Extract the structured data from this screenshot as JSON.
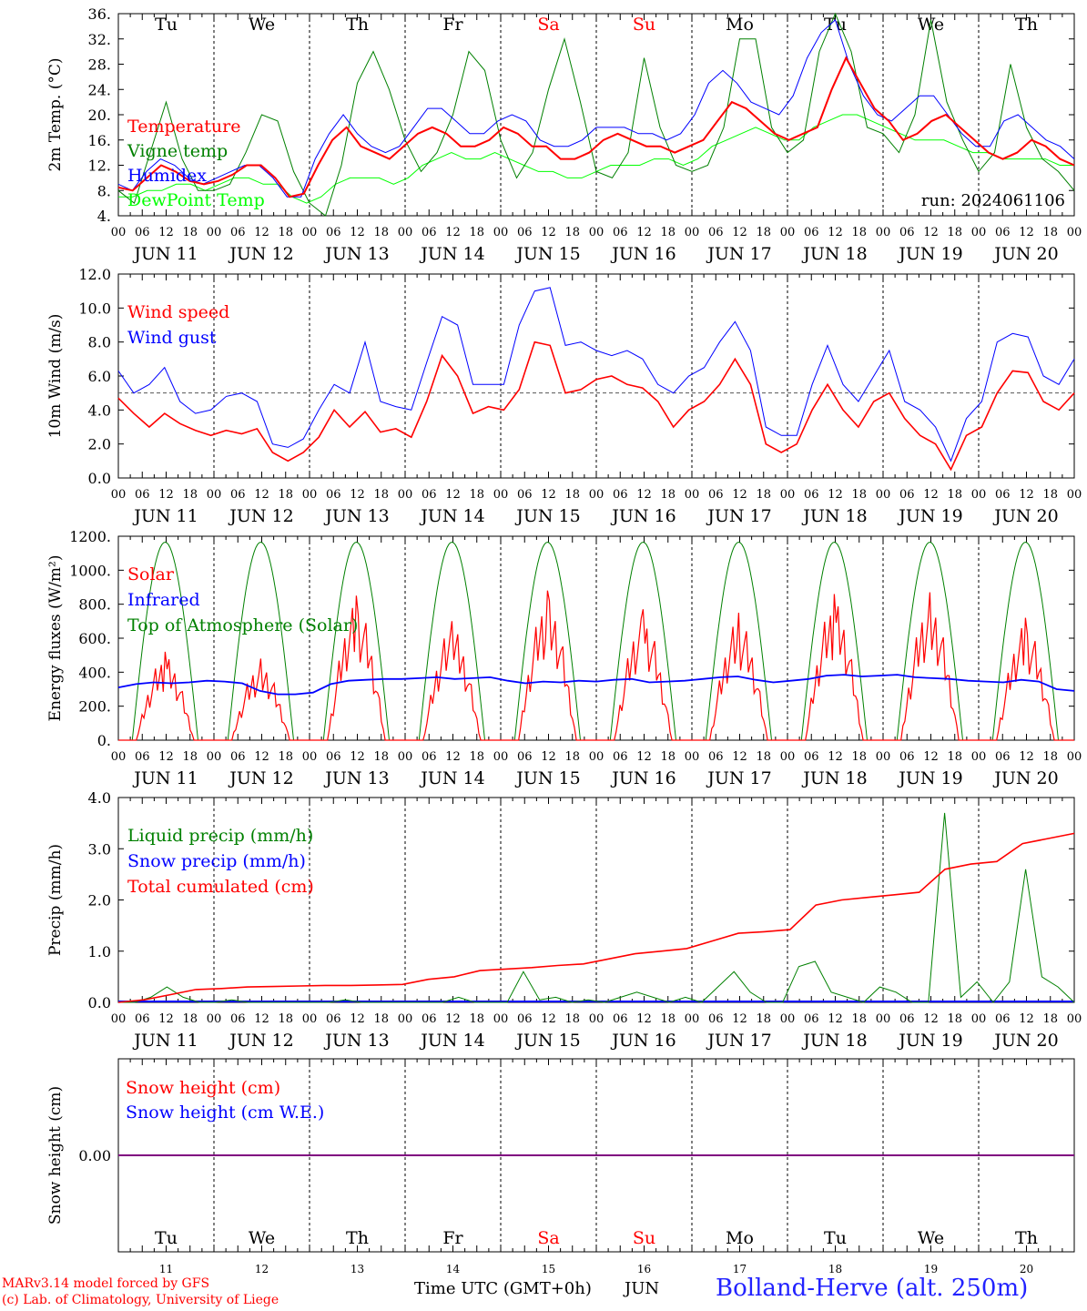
{
  "run_label": "run: 2024061106",
  "days": [
    "Tu",
    "We",
    "Th",
    "Fr",
    "Sa",
    "Su",
    "Mo",
    "Tu",
    "We",
    "Th"
  ],
  "weekend_days": [
    "Sa",
    "Su"
  ],
  "dates": [
    "JUN 11",
    "JUN 12",
    "JUN 13",
    "JUN 14",
    "JUN 15",
    "JUN 16",
    "JUN 17",
    "JUN 18",
    "JUN 19",
    "JUN 20"
  ],
  "bottom_day_numbers": [
    "11",
    "12",
    "13",
    "14",
    "15",
    "16",
    "17",
    "18",
    "19",
    "20"
  ],
  "hour_ticks": [
    "00",
    "06",
    "12",
    "18"
  ],
  "footer": {
    "model": "MARv3.14 model forced by GFS",
    "copyright": "(c) Lab. of Climatology, University of Liege",
    "time_axis": "Time UTC (GMT+0h)",
    "month": "JUN",
    "station": "Bolland-Herve (alt. 250m)"
  },
  "colors": {
    "red": "#ff0000",
    "green": "#008000",
    "blue": "#0000ff",
    "lightgreen": "#00ff00",
    "purple": "#800080"
  },
  "chart_data": [
    {
      "type": "line",
      "ylabel": "2m Temp. (°C)",
      "ylim": [
        4,
        36
      ],
      "yticks": [
        "4.",
        "8.",
        "12.",
        "16.",
        "20.",
        "24.",
        "28.",
        "32.",
        "36."
      ],
      "x_start": "2024-06-11 00:00 UTC",
      "x_step_hours": 6,
      "series": [
        {
          "name": "Temperature",
          "color": "red",
          "values": [
            8.5,
            8,
            10,
            12,
            11,
            9.5,
            9,
            9.5,
            10.5,
            12,
            12,
            10,
            7,
            7.5,
            12,
            16,
            18,
            15,
            14,
            13,
            15,
            17,
            18,
            17,
            15,
            15,
            16,
            18,
            17,
            15,
            15,
            13,
            13,
            14,
            16,
            17,
            16,
            15,
            15,
            14,
            15,
            16,
            19,
            22,
            21,
            19,
            17,
            16,
            17,
            18,
            24,
            29,
            25,
            21,
            19,
            16,
            17,
            19,
            20,
            18,
            16,
            14,
            13,
            14,
            16,
            15,
            13,
            12
          ]
        },
        {
          "name": "Vigne temp",
          "color": "green",
          "values": [
            8,
            6,
            14,
            22,
            13,
            8,
            8,
            9,
            14,
            20,
            19,
            11,
            6,
            4,
            12,
            25,
            30,
            24,
            16,
            11,
            14,
            20,
            30,
            27,
            16,
            10,
            14,
            24,
            32,
            22,
            11,
            10,
            14,
            29,
            18,
            12,
            11,
            12,
            18,
            32,
            32,
            18,
            14,
            16,
            30,
            36,
            30,
            18,
            17,
            14,
            20,
            35,
            22,
            16,
            11,
            14,
            28,
            18,
            13,
            11,
            8
          ]
        },
        {
          "name": "Humidex",
          "color": "blue",
          "values": [
            9,
            8,
            11,
            13,
            12,
            10,
            9,
            10,
            11,
            12,
            12,
            10,
            7,
            7,
            13,
            17,
            20,
            17,
            15,
            14,
            15,
            18,
            21,
            21,
            19,
            17,
            17,
            19,
            20,
            19,
            16,
            15,
            15,
            16,
            18,
            18,
            18,
            17,
            17,
            16,
            17,
            20,
            25,
            27,
            25,
            22,
            21,
            20,
            23,
            29,
            33,
            35,
            28,
            23,
            20,
            19,
            21,
            23,
            23,
            20,
            17,
            15,
            15,
            19,
            20,
            18,
            16,
            15,
            13
          ]
        },
        {
          "name": "DewPoint Temp",
          "color": "lightgreen",
          "values": [
            7,
            7,
            8,
            8,
            9,
            9,
            8,
            9,
            10,
            10,
            9,
            9,
            7,
            6,
            7,
            9,
            10,
            10,
            10,
            9,
            10,
            12,
            13,
            14,
            13,
            13,
            14,
            13,
            12,
            11,
            11,
            10,
            10,
            11,
            12,
            12,
            12,
            13,
            13,
            12,
            13,
            15,
            16,
            17,
            18,
            17,
            16,
            16,
            18,
            19,
            20,
            20,
            19,
            18,
            17,
            16,
            16,
            16,
            15,
            14,
            14,
            13,
            13,
            13,
            13,
            12,
            12
          ]
        }
      ]
    },
    {
      "type": "line",
      "ylabel": "10m Wind (m/s)",
      "ylim": [
        0,
        12
      ],
      "yticks": [
        "0.0",
        "2.0",
        "4.0",
        "6.0",
        "8.0",
        "10.0",
        "12.0"
      ],
      "reference_line": 5,
      "series": [
        {
          "name": "Wind speed",
          "color": "red",
          "values": [
            4.7,
            3.8,
            3.0,
            3.8,
            3.2,
            2.8,
            2.5,
            2.8,
            2.6,
            2.9,
            1.5,
            1.0,
            1.5,
            2.4,
            4.0,
            3.0,
            3.9,
            2.7,
            2.9,
            2.4,
            4.5,
            7.2,
            6.0,
            3.8,
            4.2,
            4.0,
            5.2,
            8.0,
            7.8,
            5.0,
            5.2,
            5.8,
            6.0,
            5.5,
            5.3,
            4.5,
            3.0,
            4.0,
            4.5,
            5.5,
            7.0,
            5.5,
            2.0,
            1.5,
            2.0,
            4.0,
            5.5,
            4.0,
            3.0,
            4.5,
            5.0,
            3.5,
            2.5,
            2.0,
            0.5,
            2.5,
            3.0,
            5.0,
            6.3,
            6.2,
            4.5,
            4.0,
            5.0
          ]
        },
        {
          "name": "Wind gust",
          "color": "blue",
          "values": [
            6.3,
            5.0,
            5.5,
            6.5,
            4.5,
            3.8,
            4.0,
            4.8,
            5.0,
            4.5,
            2.0,
            1.8,
            2.3,
            4.0,
            5.5,
            5.0,
            8.0,
            4.5,
            4.2,
            4.0,
            6.8,
            9.5,
            9.0,
            5.5,
            5.5,
            5.5,
            9.0,
            11.0,
            11.2,
            7.8,
            8.0,
            7.5,
            7.2,
            7.5,
            7.0,
            5.5,
            5.0,
            6.0,
            6.5,
            8.0,
            9.2,
            7.5,
            3.0,
            2.5,
            2.5,
            5.5,
            7.8,
            5.5,
            4.5,
            6.0,
            7.5,
            4.5,
            4.0,
            3.0,
            1.0,
            3.5,
            4.5,
            8.0,
            8.5,
            8.3,
            6.0,
            5.5,
            7.0
          ]
        }
      ]
    },
    {
      "type": "line",
      "ylabel": "Energy fluxes (W/m2)",
      "ylim": [
        0,
        1200
      ],
      "yticks": [
        "0.",
        "200.",
        "400.",
        "600.",
        "800.",
        "1000.",
        "1200."
      ],
      "series": [
        {
          "name": "Solar",
          "color": "red",
          "peaks": [
            520,
            480,
            850,
            700,
            880,
            770,
            750,
            860,
            870,
            720
          ]
        },
        {
          "name": "Infrared",
          "color": "blue",
          "values": [
            310,
            330,
            340,
            335,
            340,
            350,
            345,
            335,
            290,
            270,
            270,
            280,
            330,
            350,
            355,
            360,
            360,
            365,
            370,
            360,
            365,
            370,
            350,
            335,
            345,
            340,
            350,
            345,
            355,
            360,
            340,
            345,
            350,
            360,
            370,
            375,
            355,
            340,
            350,
            360,
            380,
            385,
            375,
            380,
            385,
            370,
            365,
            360,
            350,
            345,
            340,
            355,
            345,
            300,
            290
          ]
        },
        {
          "name": "Top of Atmosphere (Solar)",
          "color": "green",
          "peak": 1165
        }
      ]
    },
    {
      "type": "line",
      "ylabel": "Precip (mm/h)",
      "ylim": [
        0,
        4
      ],
      "yticks": [
        "0.0",
        "1.0",
        "2.0",
        "3.0",
        "4.0"
      ],
      "series": [
        {
          "name": "Liquid precip (mm/h)",
          "color": "green",
          "values": [
            0,
            0,
            0.1,
            0.3,
            0.1,
            0,
            0,
            0.05,
            0,
            0,
            0,
            0,
            0,
            0,
            0.05,
            0,
            0,
            0,
            0,
            0,
            0,
            0.1,
            0,
            0,
            0,
            0.6,
            0.05,
            0.1,
            0,
            0.05,
            0,
            0.1,
            0.2,
            0.1,
            0,
            0.1,
            0,
            0.3,
            0.6,
            0.2,
            0,
            0,
            0.7,
            0.8,
            0.2,
            0.1,
            0,
            0.3,
            0.2,
            0,
            0,
            3.7,
            0.1,
            0.4,
            0,
            0.4,
            2.6,
            0.5,
            0.3,
            0
          ]
        },
        {
          "name": "Snow precip (mm/h)",
          "color": "blue",
          "values": [
            0
          ]
        },
        {
          "name": "Total cumulated (cm)",
          "color": "red",
          "values": [
            0,
            0.05,
            0.15,
            0.25,
            0.27,
            0.3,
            0.31,
            0.32,
            0.33,
            0.33,
            0.34,
            0.35,
            0.45,
            0.5,
            0.62,
            0.65,
            0.68,
            0.72,
            0.75,
            0.85,
            0.95,
            1.0,
            1.05,
            1.2,
            1.35,
            1.38,
            1.42,
            1.9,
            2.0,
            2.05,
            2.1,
            2.15,
            2.6,
            2.7,
            2.75,
            3.1,
            3.2,
            3.3
          ]
        }
      ]
    },
    {
      "type": "line",
      "ylabel": "Snow height (cm)",
      "yticks": [
        "0.00"
      ],
      "series": [
        {
          "name": "Snow height (cm)",
          "color": "red",
          "values": [
            0
          ]
        },
        {
          "name": "Snow height (cm W.E.)",
          "color": "blue",
          "values": [
            0
          ]
        }
      ]
    }
  ]
}
